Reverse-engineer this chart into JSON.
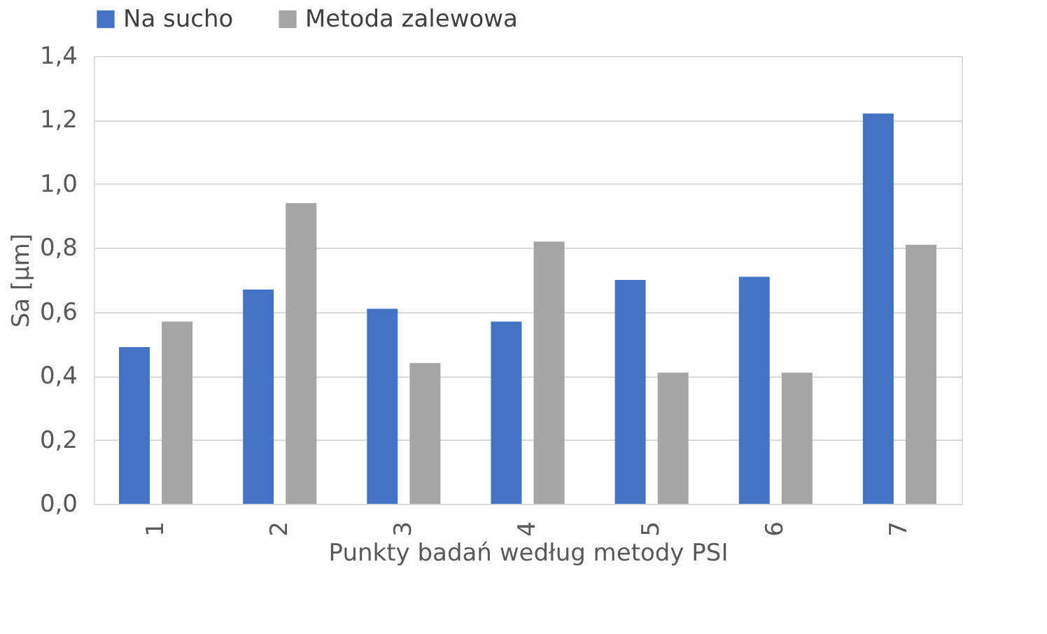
{
  "chart_data": {
    "type": "bar",
    "xlabel": "Punkty badań według metody PSI",
    "ylabel": "Sa [µm]",
    "categories": [
      "1",
      "2",
      "3",
      "4",
      "5",
      "6",
      "7"
    ],
    "series": [
      {
        "name": "Na sucho",
        "color": "#4472c4",
        "values": [
          0.49,
          0.67,
          0.61,
          0.57,
          0.7,
          0.71,
          1.22
        ]
      },
      {
        "name": "Metoda zalewowa",
        "color": "#a5a5a5",
        "values": [
          0.57,
          0.94,
          0.44,
          0.82,
          0.41,
          0.41,
          0.81
        ]
      }
    ],
    "ylim": [
      0,
      1.4
    ],
    "yticks": [
      {
        "value": 0,
        "label": "0,0"
      },
      {
        "value": 0.2,
        "label": "0,2"
      },
      {
        "value": 0.4,
        "label": "0,4"
      },
      {
        "value": 0.6,
        "label": "0,6"
      },
      {
        "value": 0.8,
        "label": "0,8"
      },
      {
        "value": 1.0,
        "label": "1,0"
      },
      {
        "value": 1.2,
        "label": "1,2"
      },
      {
        "value": 1.4,
        "label": "1,4"
      }
    ],
    "grid": "y",
    "legend": "top"
  }
}
